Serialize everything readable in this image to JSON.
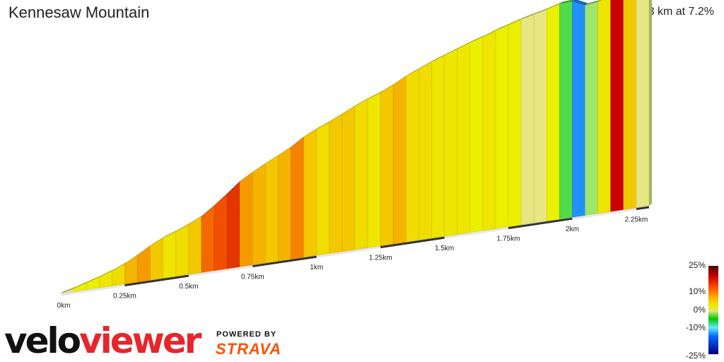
{
  "header": {
    "title": "Kennesaw Mountain",
    "summary": "2.3 km at 7.2%"
  },
  "chart_data": {
    "type": "area",
    "title": "Kennesaw Mountain",
    "subtitle": "2.3 km at 7.2%",
    "xlabel": "",
    "ylabel": "",
    "distance_unit": "km",
    "xlim": [
      0,
      2.3
    ],
    "x_ticks": [
      "0km",
      "0.25km",
      "0.5km",
      "0.75km",
      "1km",
      "1.25km",
      "1.5km",
      "1.75km",
      "2km",
      "2.25km"
    ],
    "profile": {
      "x": [
        0,
        0.05,
        0.1,
        0.15,
        0.2,
        0.25,
        0.3,
        0.35,
        0.4,
        0.45,
        0.5,
        0.55,
        0.6,
        0.65,
        0.7,
        0.75,
        0.8,
        0.85,
        0.9,
        0.95,
        1.0,
        1.05,
        1.1,
        1.15,
        1.2,
        1.25,
        1.3,
        1.35,
        1.4,
        1.45,
        1.5,
        1.55,
        1.6,
        1.65,
        1.7,
        1.75,
        1.8,
        1.85,
        1.9,
        1.95,
        2.0,
        2.05,
        2.1,
        2.15,
        2.2,
        2.25,
        2.3
      ],
      "gradient_pct": [
        4,
        5,
        5,
        6,
        7,
        9,
        10,
        8,
        6,
        7,
        8,
        12,
        13,
        14,
        10,
        9,
        8,
        9,
        11,
        8,
        7,
        8,
        8,
        7,
        6,
        8,
        9,
        7,
        7,
        6,
        6,
        6,
        5,
        6,
        5,
        5,
        4,
        4,
        5,
        1,
        -8,
        2,
        6,
        16,
        8,
        4,
        3
      ]
    },
    "legend": {
      "placement": "bottom-right",
      "labels": [
        "25%",
        "10%",
        "0%",
        "-10%",
        "-25%"
      ],
      "values": [
        25,
        10,
        0,
        -10,
        -25
      ]
    }
  },
  "branding": {
    "logo_part1": "velo",
    "logo_part2": "viewer",
    "powered_by": "POWERED BY",
    "strava": "STRAVA"
  }
}
